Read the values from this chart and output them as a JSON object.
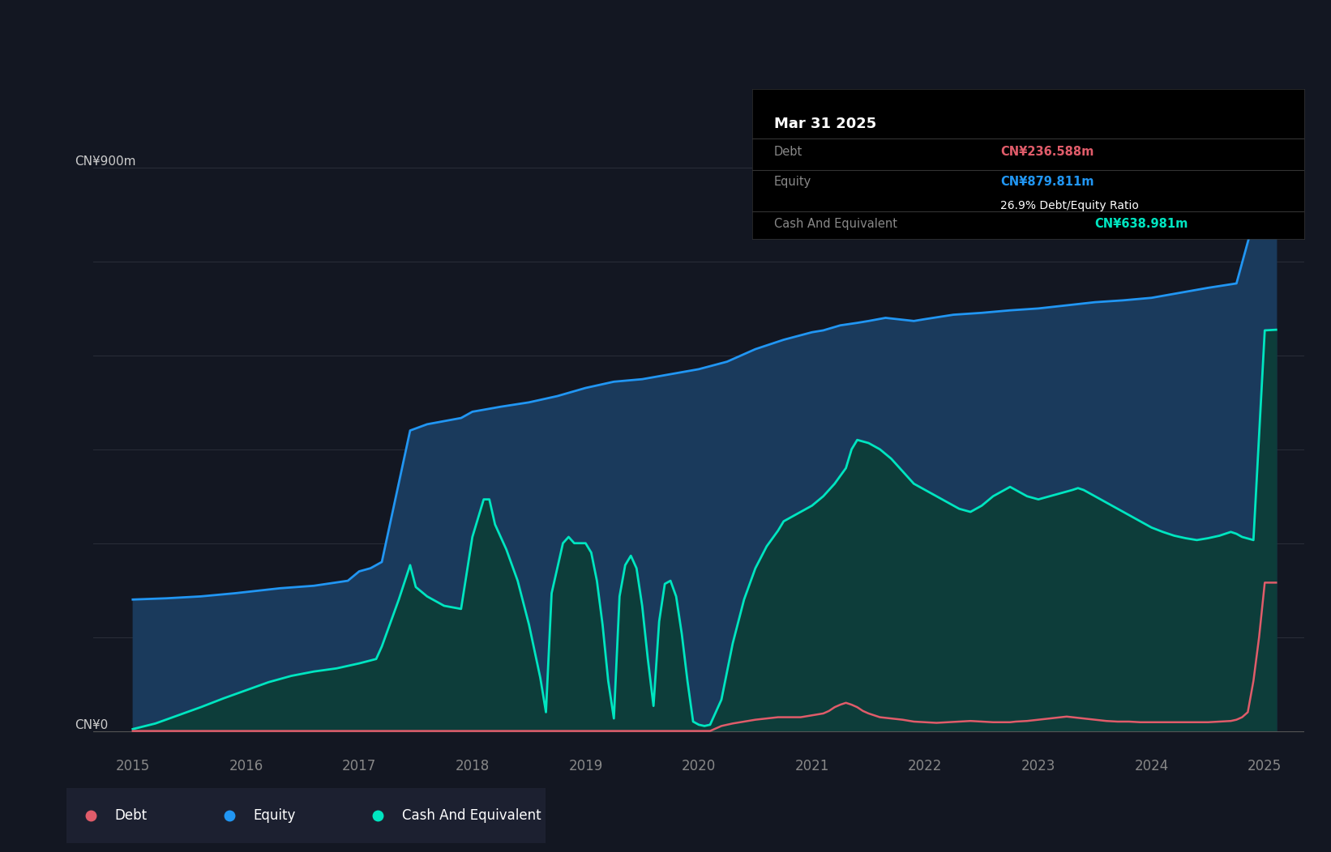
{
  "background_color": "#131722",
  "plot_bg_color": "#131722",
  "tooltip_title": "Mar 31 2025",
  "tooltip_debt": "CN¥236.588m",
  "tooltip_equity": "CN¥879.811m",
  "tooltip_ratio": "26.9% Debt/Equity Ratio",
  "tooltip_cash": "CN¥638.981m",
  "y_label_top": "CN¥900m",
  "y_label_bottom": "CN¥0",
  "debt_color": "#e05c6a",
  "equity_color": "#2196f3",
  "cash_color": "#00e5c0",
  "equity_fill_color": "#1a3a5c",
  "cash_fill_color": "#0d3d3a",
  "grid_color": "#2a2e39",
  "axis_color": "#444444",
  "text_color_light": "#888888",
  "text_color_white": "#ffffff",
  "x_ticks": [
    2015,
    2016,
    2017,
    2018,
    2019,
    2020,
    2021,
    2022,
    2023,
    2024,
    2025
  ],
  "y_max": 950,
  "y_min": -30,
  "equity_data": [
    [
      2015.0,
      210
    ],
    [
      2015.3,
      212
    ],
    [
      2015.6,
      215
    ],
    [
      2015.9,
      220
    ],
    [
      2016.0,
      222
    ],
    [
      2016.3,
      228
    ],
    [
      2016.6,
      232
    ],
    [
      2016.9,
      240
    ],
    [
      2017.0,
      255
    ],
    [
      2017.1,
      260
    ],
    [
      2017.2,
      270
    ],
    [
      2017.45,
      480
    ],
    [
      2017.6,
      490
    ],
    [
      2017.9,
      500
    ],
    [
      2018.0,
      510
    ],
    [
      2018.25,
      518
    ],
    [
      2018.5,
      525
    ],
    [
      2018.75,
      535
    ],
    [
      2019.0,
      548
    ],
    [
      2019.25,
      558
    ],
    [
      2019.5,
      562
    ],
    [
      2019.75,
      570
    ],
    [
      2020.0,
      578
    ],
    [
      2020.25,
      590
    ],
    [
      2020.5,
      610
    ],
    [
      2020.75,
      625
    ],
    [
      2021.0,
      637
    ],
    [
      2021.1,
      640
    ],
    [
      2021.25,
      648
    ],
    [
      2021.4,
      652
    ],
    [
      2021.5,
      655
    ],
    [
      2021.65,
      660
    ],
    [
      2021.75,
      658
    ],
    [
      2021.9,
      655
    ],
    [
      2022.0,
      658
    ],
    [
      2022.25,
      665
    ],
    [
      2022.5,
      668
    ],
    [
      2022.75,
      672
    ],
    [
      2023.0,
      675
    ],
    [
      2023.25,
      680
    ],
    [
      2023.5,
      685
    ],
    [
      2023.75,
      688
    ],
    [
      2024.0,
      692
    ],
    [
      2024.25,
      700
    ],
    [
      2024.5,
      708
    ],
    [
      2024.75,
      715
    ],
    [
      2025.0,
      880
    ],
    [
      2025.1,
      882
    ]
  ],
  "cash_data": [
    [
      2015.0,
      3
    ],
    [
      2015.2,
      12
    ],
    [
      2015.4,
      25
    ],
    [
      2015.6,
      38
    ],
    [
      2015.8,
      52
    ],
    [
      2016.0,
      65
    ],
    [
      2016.2,
      78
    ],
    [
      2016.4,
      88
    ],
    [
      2016.6,
      95
    ],
    [
      2016.8,
      100
    ],
    [
      2017.0,
      108
    ],
    [
      2017.15,
      115
    ],
    [
      2017.2,
      135
    ],
    [
      2017.35,
      210
    ],
    [
      2017.45,
      265
    ],
    [
      2017.5,
      230
    ],
    [
      2017.6,
      215
    ],
    [
      2017.75,
      200
    ],
    [
      2017.9,
      195
    ],
    [
      2018.0,
      310
    ],
    [
      2018.05,
      340
    ],
    [
      2018.1,
      370
    ],
    [
      2018.15,
      370
    ],
    [
      2018.2,
      330
    ],
    [
      2018.3,
      290
    ],
    [
      2018.4,
      240
    ],
    [
      2018.5,
      170
    ],
    [
      2018.6,
      85
    ],
    [
      2018.65,
      30
    ],
    [
      2018.7,
      220
    ],
    [
      2018.8,
      300
    ],
    [
      2018.85,
      310
    ],
    [
      2018.9,
      300
    ],
    [
      2019.0,
      300
    ],
    [
      2019.05,
      285
    ],
    [
      2019.1,
      240
    ],
    [
      2019.15,
      170
    ],
    [
      2019.2,
      80
    ],
    [
      2019.25,
      20
    ],
    [
      2019.3,
      215
    ],
    [
      2019.35,
      265
    ],
    [
      2019.4,
      280
    ],
    [
      2019.45,
      260
    ],
    [
      2019.5,
      200
    ],
    [
      2019.55,
      115
    ],
    [
      2019.6,
      40
    ],
    [
      2019.65,
      175
    ],
    [
      2019.7,
      235
    ],
    [
      2019.75,
      240
    ],
    [
      2019.8,
      215
    ],
    [
      2019.85,
      155
    ],
    [
      2019.9,
      80
    ],
    [
      2019.95,
      15
    ],
    [
      2020.0,
      10
    ],
    [
      2020.05,
      8
    ],
    [
      2020.1,
      10
    ],
    [
      2020.2,
      50
    ],
    [
      2020.3,
      140
    ],
    [
      2020.4,
      210
    ],
    [
      2020.5,
      260
    ],
    [
      2020.6,
      295
    ],
    [
      2020.7,
      320
    ],
    [
      2020.75,
      335
    ],
    [
      2020.9,
      350
    ],
    [
      2021.0,
      360
    ],
    [
      2021.1,
      375
    ],
    [
      2021.2,
      395
    ],
    [
      2021.3,
      420
    ],
    [
      2021.35,
      450
    ],
    [
      2021.4,
      465
    ],
    [
      2021.5,
      460
    ],
    [
      2021.6,
      450
    ],
    [
      2021.7,
      435
    ],
    [
      2021.8,
      415
    ],
    [
      2021.9,
      395
    ],
    [
      2022.0,
      385
    ],
    [
      2022.1,
      375
    ],
    [
      2022.2,
      365
    ],
    [
      2022.3,
      355
    ],
    [
      2022.4,
      350
    ],
    [
      2022.5,
      360
    ],
    [
      2022.6,
      375
    ],
    [
      2022.7,
      385
    ],
    [
      2022.75,
      390
    ],
    [
      2022.8,
      385
    ],
    [
      2022.9,
      375
    ],
    [
      2023.0,
      370
    ],
    [
      2023.1,
      375
    ],
    [
      2023.2,
      380
    ],
    [
      2023.3,
      385
    ],
    [
      2023.35,
      388
    ],
    [
      2023.4,
      385
    ],
    [
      2023.5,
      375
    ],
    [
      2023.6,
      365
    ],
    [
      2023.7,
      355
    ],
    [
      2023.8,
      345
    ],
    [
      2023.9,
      335
    ],
    [
      2024.0,
      325
    ],
    [
      2024.1,
      318
    ],
    [
      2024.2,
      312
    ],
    [
      2024.3,
      308
    ],
    [
      2024.4,
      305
    ],
    [
      2024.5,
      308
    ],
    [
      2024.6,
      312
    ],
    [
      2024.7,
      318
    ],
    [
      2024.75,
      315
    ],
    [
      2024.8,
      310
    ],
    [
      2024.9,
      305
    ],
    [
      2025.0,
      640
    ],
    [
      2025.1,
      641
    ]
  ],
  "debt_data": [
    [
      2015.0,
      0
    ],
    [
      2015.9,
      0
    ],
    [
      2016.0,
      0
    ],
    [
      2016.9,
      0
    ],
    [
      2017.0,
      0
    ],
    [
      2017.9,
      0
    ],
    [
      2018.0,
      0
    ],
    [
      2018.9,
      0
    ],
    [
      2019.0,
      0
    ],
    [
      2019.9,
      0
    ],
    [
      2020.0,
      0
    ],
    [
      2020.1,
      0
    ],
    [
      2020.2,
      8
    ],
    [
      2020.3,
      12
    ],
    [
      2020.4,
      15
    ],
    [
      2020.5,
      18
    ],
    [
      2020.6,
      20
    ],
    [
      2020.7,
      22
    ],
    [
      2020.8,
      22
    ],
    [
      2020.9,
      22
    ],
    [
      2021.0,
      25
    ],
    [
      2021.1,
      28
    ],
    [
      2021.15,
      32
    ],
    [
      2021.2,
      38
    ],
    [
      2021.25,
      42
    ],
    [
      2021.3,
      45
    ],
    [
      2021.35,
      42
    ],
    [
      2021.4,
      38
    ],
    [
      2021.45,
      32
    ],
    [
      2021.5,
      28
    ],
    [
      2021.55,
      25
    ],
    [
      2021.6,
      22
    ],
    [
      2021.7,
      20
    ],
    [
      2021.8,
      18
    ],
    [
      2021.9,
      15
    ],
    [
      2022.0,
      14
    ],
    [
      2022.1,
      13
    ],
    [
      2022.2,
      14
    ],
    [
      2022.3,
      15
    ],
    [
      2022.4,
      16
    ],
    [
      2022.5,
      15
    ],
    [
      2022.6,
      14
    ],
    [
      2022.7,
      14
    ],
    [
      2022.75,
      14
    ],
    [
      2022.8,
      15
    ],
    [
      2022.9,
      16
    ],
    [
      2023.0,
      18
    ],
    [
      2023.1,
      20
    ],
    [
      2023.2,
      22
    ],
    [
      2023.25,
      23
    ],
    [
      2023.3,
      22
    ],
    [
      2023.4,
      20
    ],
    [
      2023.5,
      18
    ],
    [
      2023.6,
      16
    ],
    [
      2023.7,
      15
    ],
    [
      2023.8,
      15
    ],
    [
      2023.9,
      14
    ],
    [
      2024.0,
      14
    ],
    [
      2024.1,
      14
    ],
    [
      2024.2,
      14
    ],
    [
      2024.3,
      14
    ],
    [
      2024.4,
      14
    ],
    [
      2024.5,
      14
    ],
    [
      2024.6,
      15
    ],
    [
      2024.7,
      16
    ],
    [
      2024.75,
      18
    ],
    [
      2024.8,
      22
    ],
    [
      2024.85,
      30
    ],
    [
      2024.9,
      80
    ],
    [
      2024.95,
      150
    ],
    [
      2025.0,
      237
    ],
    [
      2025.1,
      237
    ]
  ]
}
